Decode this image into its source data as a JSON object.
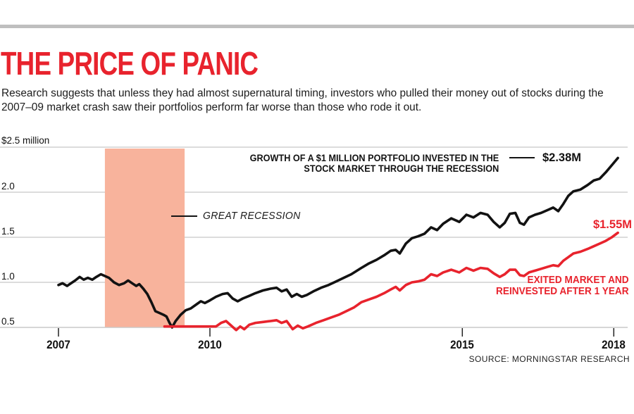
{
  "header": {
    "title": "THE PRICE OF PANIC",
    "subtitle": "Research suggests that unless they had almost supernatural timing, investors who pulled their money out of stocks during the 2007–09 market crash saw their portfolios perform far worse than those who rode it out."
  },
  "footer": {
    "source": "SOURCE: MORNINGSTAR RESEARCH"
  },
  "colors": {
    "accent_red": "#e8232d",
    "salmon_band": "#f8b39c",
    "gridline": "#c7c7c7",
    "top_bar": "#bfbfbf",
    "line_black": "#121212"
  },
  "annotations": {
    "growth": {
      "lines": [
        "GROWTH OF A $1 MILLION PORTFOLIO INVESTED IN THE",
        "STOCK MARKET THROUGH THE RECESSION"
      ]
    },
    "exited": {
      "lines": [
        "EXITED MARKET AND",
        "REINVESTED AFTER 1 YEAR"
      ]
    }
  },
  "chart_data": {
    "type": "line",
    "title": "THE PRICE OF PANIC",
    "unit": "million USD",
    "y_axis_label": "$2.5 million",
    "y_tick_labels": [
      "$2.5 million",
      "2.0",
      "1.5",
      "1.0",
      "0.5"
    ],
    "y_ticks": [
      2.5,
      2.0,
      1.5,
      1.0,
      0.5
    ],
    "x_tick_labels": [
      "2007",
      "2010",
      "2015",
      "2018"
    ],
    "x_ticks": [
      2007,
      2010,
      2015,
      2018
    ],
    "xlim": [
      2007,
      2018.2
    ],
    "ylim": [
      0.45,
      2.55
    ],
    "grid": "horizontal",
    "legend_position": "inline-annotations",
    "recession_band": {
      "label": "GREAT RECESSION",
      "x_start": 2007.92,
      "x_end": 2009.5
    },
    "series": [
      {
        "name": "GROWTH OF A $1 MILLION PORTFOLIO INVESTED IN THE STOCK MARKET THROUGH THE RECESSION",
        "color": "#121212",
        "end_label": "$2.38M",
        "end_value": 2.38,
        "points": [
          [
            2007.0,
            0.97
          ],
          [
            2007.08,
            0.99
          ],
          [
            2007.17,
            0.96
          ],
          [
            2007.25,
            0.99
          ],
          [
            2007.33,
            1.02
          ],
          [
            2007.42,
            1.06
          ],
          [
            2007.5,
            1.03
          ],
          [
            2007.58,
            1.05
          ],
          [
            2007.67,
            1.03
          ],
          [
            2007.75,
            1.06
          ],
          [
            2007.84,
            1.09
          ],
          [
            2007.92,
            1.07
          ],
          [
            2008.0,
            1.05
          ],
          [
            2008.1,
            1.0
          ],
          [
            2008.2,
            0.97
          ],
          [
            2008.3,
            0.99
          ],
          [
            2008.38,
            1.02
          ],
          [
            2008.46,
            0.99
          ],
          [
            2008.54,
            0.96
          ],
          [
            2008.6,
            0.98
          ],
          [
            2008.68,
            0.93
          ],
          [
            2008.76,
            0.87
          ],
          [
            2008.84,
            0.78
          ],
          [
            2008.92,
            0.68
          ],
          [
            2009.0,
            0.66
          ],
          [
            2009.08,
            0.64
          ],
          [
            2009.14,
            0.62
          ],
          [
            2009.2,
            0.55
          ],
          [
            2009.25,
            0.5
          ],
          [
            2009.32,
            0.57
          ],
          [
            2009.42,
            0.64
          ],
          [
            2009.52,
            0.69
          ],
          [
            2009.62,
            0.71
          ],
          [
            2009.72,
            0.75
          ],
          [
            2009.82,
            0.79
          ],
          [
            2009.9,
            0.77
          ],
          [
            2010.0,
            0.8
          ],
          [
            2010.12,
            0.84
          ],
          [
            2010.25,
            0.87
          ],
          [
            2010.35,
            0.88
          ],
          [
            2010.45,
            0.82
          ],
          [
            2010.55,
            0.79
          ],
          [
            2010.65,
            0.82
          ],
          [
            2010.78,
            0.85
          ],
          [
            2010.9,
            0.88
          ],
          [
            2011.05,
            0.91
          ],
          [
            2011.2,
            0.93
          ],
          [
            2011.32,
            0.94
          ],
          [
            2011.42,
            0.9
          ],
          [
            2011.52,
            0.92
          ],
          [
            2011.62,
            0.84
          ],
          [
            2011.72,
            0.87
          ],
          [
            2011.82,
            0.84
          ],
          [
            2011.92,
            0.86
          ],
          [
            2012.05,
            0.9
          ],
          [
            2012.2,
            0.94
          ],
          [
            2012.35,
            0.97
          ],
          [
            2012.5,
            1.01
          ],
          [
            2012.65,
            1.05
          ],
          [
            2012.8,
            1.09
          ],
          [
            2013.0,
            1.16
          ],
          [
            2013.15,
            1.21
          ],
          [
            2013.3,
            1.25
          ],
          [
            2013.45,
            1.3
          ],
          [
            2013.58,
            1.35
          ],
          [
            2013.68,
            1.36
          ],
          [
            2013.76,
            1.32
          ],
          [
            2013.88,
            1.43
          ],
          [
            2014.0,
            1.49
          ],
          [
            2014.12,
            1.51
          ],
          [
            2014.25,
            1.54
          ],
          [
            2014.38,
            1.61
          ],
          [
            2014.5,
            1.58
          ],
          [
            2014.62,
            1.65
          ],
          [
            2014.78,
            1.71
          ],
          [
            2014.94,
            1.67
          ],
          [
            2015.08,
            1.75
          ],
          [
            2015.22,
            1.72
          ],
          [
            2015.36,
            1.77
          ],
          [
            2015.5,
            1.75
          ],
          [
            2015.62,
            1.67
          ],
          [
            2015.74,
            1.61
          ],
          [
            2015.84,
            1.66
          ],
          [
            2015.94,
            1.76
          ],
          [
            2016.05,
            1.77
          ],
          [
            2016.14,
            1.66
          ],
          [
            2016.22,
            1.64
          ],
          [
            2016.32,
            1.72
          ],
          [
            2016.44,
            1.75
          ],
          [
            2016.56,
            1.77
          ],
          [
            2016.68,
            1.8
          ],
          [
            2016.8,
            1.83
          ],
          [
            2016.9,
            1.79
          ],
          [
            2017.0,
            1.87
          ],
          [
            2017.1,
            1.96
          ],
          [
            2017.2,
            2.01
          ],
          [
            2017.34,
            2.03
          ],
          [
            2017.48,
            2.08
          ],
          [
            2017.6,
            2.13
          ],
          [
            2017.72,
            2.15
          ],
          [
            2017.84,
            2.22
          ],
          [
            2017.96,
            2.3
          ],
          [
            2018.08,
            2.38
          ]
        ]
      },
      {
        "name": "EXITED MARKET AND REINVESTED AFTER 1 YEAR",
        "color": "#e8232d",
        "end_label": "$1.55M",
        "end_value": 1.55,
        "points": [
          [
            2009.1,
            0.51
          ],
          [
            2010.12,
            0.51
          ],
          [
            2010.22,
            0.55
          ],
          [
            2010.32,
            0.57
          ],
          [
            2010.42,
            0.52
          ],
          [
            2010.52,
            0.47
          ],
          [
            2010.6,
            0.51
          ],
          [
            2010.68,
            0.48
          ],
          [
            2010.78,
            0.53
          ],
          [
            2010.9,
            0.55
          ],
          [
            2011.05,
            0.56
          ],
          [
            2011.2,
            0.57
          ],
          [
            2011.32,
            0.58
          ],
          [
            2011.42,
            0.55
          ],
          [
            2011.52,
            0.57
          ],
          [
            2011.64,
            0.48
          ],
          [
            2011.74,
            0.52
          ],
          [
            2011.84,
            0.49
          ],
          [
            2011.94,
            0.51
          ],
          [
            2012.1,
            0.55
          ],
          [
            2012.25,
            0.58
          ],
          [
            2012.4,
            0.61
          ],
          [
            2012.55,
            0.64
          ],
          [
            2012.7,
            0.68
          ],
          [
            2012.85,
            0.72
          ],
          [
            2013.0,
            0.78
          ],
          [
            2013.15,
            0.81
          ],
          [
            2013.3,
            0.84
          ],
          [
            2013.45,
            0.88
          ],
          [
            2013.58,
            0.92
          ],
          [
            2013.68,
            0.95
          ],
          [
            2013.76,
            0.91
          ],
          [
            2013.88,
            0.97
          ],
          [
            2014.0,
            1.0
          ],
          [
            2014.12,
            1.01
          ],
          [
            2014.25,
            1.03
          ],
          [
            2014.38,
            1.09
          ],
          [
            2014.5,
            1.07
          ],
          [
            2014.62,
            1.11
          ],
          [
            2014.78,
            1.14
          ],
          [
            2014.94,
            1.11
          ],
          [
            2015.08,
            1.16
          ],
          [
            2015.22,
            1.13
          ],
          [
            2015.36,
            1.16
          ],
          [
            2015.5,
            1.15
          ],
          [
            2015.62,
            1.1
          ],
          [
            2015.74,
            1.06
          ],
          [
            2015.84,
            1.09
          ],
          [
            2015.94,
            1.14
          ],
          [
            2016.05,
            1.14
          ],
          [
            2016.14,
            1.08
          ],
          [
            2016.22,
            1.07
          ],
          [
            2016.32,
            1.11
          ],
          [
            2016.44,
            1.13
          ],
          [
            2016.56,
            1.15
          ],
          [
            2016.68,
            1.17
          ],
          [
            2016.8,
            1.19
          ],
          [
            2016.9,
            1.18
          ],
          [
            2017.0,
            1.24
          ],
          [
            2017.1,
            1.28
          ],
          [
            2017.2,
            1.32
          ],
          [
            2017.34,
            1.34
          ],
          [
            2017.48,
            1.37
          ],
          [
            2017.6,
            1.4
          ],
          [
            2017.72,
            1.43
          ],
          [
            2017.84,
            1.46
          ],
          [
            2017.96,
            1.5
          ],
          [
            2018.08,
            1.55
          ]
        ]
      }
    ]
  }
}
